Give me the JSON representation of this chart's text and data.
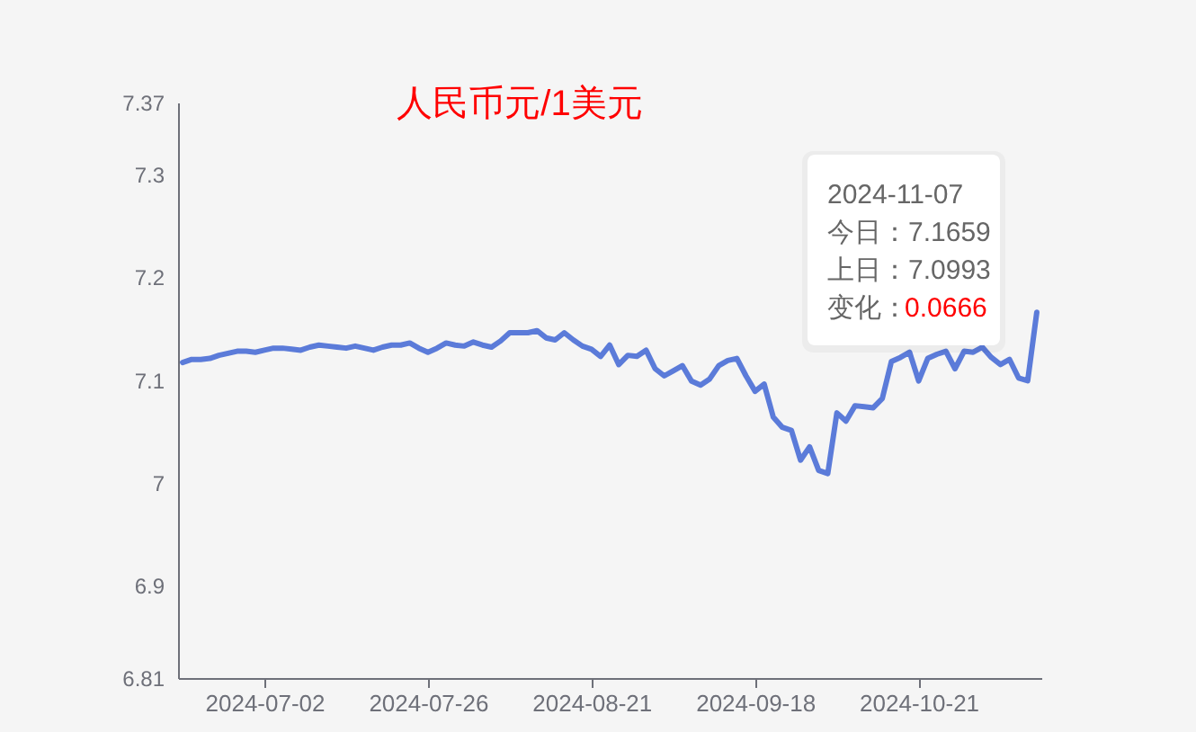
{
  "chart_data": {
    "type": "line",
    "title": "人民币元/1美元",
    "categories": [
      null,
      null,
      null,
      null,
      null,
      null,
      null,
      null,
      null,
      "2024-07-02",
      null,
      null,
      null,
      null,
      null,
      null,
      null,
      null,
      null,
      null,
      null,
      null,
      null,
      null,
      null,
      null,
      null,
      "2024-07-26",
      null,
      null,
      null,
      null,
      null,
      null,
      null,
      null,
      null,
      null,
      null,
      null,
      null,
      null,
      null,
      null,
      null,
      "2024-08-21",
      null,
      null,
      null,
      null,
      null,
      null,
      null,
      null,
      null,
      null,
      null,
      null,
      null,
      null,
      null,
      null,
      null,
      "2024-09-18",
      null,
      null,
      null,
      null,
      null,
      null,
      null,
      null,
      null,
      null,
      null,
      null,
      null,
      null,
      null,
      null,
      null,
      "2024-10-21",
      null,
      null,
      null,
      null,
      null,
      null,
      null,
      null,
      null,
      null,
      null,
      null,
      null
    ],
    "series": [
      {
        "color": "#5b7bd9",
        "values": [
          7.117,
          7.12,
          7.12,
          7.121,
          7.124,
          7.126,
          7.128,
          7.128,
          7.127,
          7.129,
          7.131,
          7.131,
          7.13,
          7.129,
          7.132,
          7.134,
          7.133,
          7.132,
          7.131,
          7.133,
          7.131,
          7.129,
          7.132,
          7.134,
          7.134,
          7.136,
          7.131,
          7.127,
          7.131,
          7.136,
          7.134,
          7.133,
          7.137,
          7.134,
          7.132,
          7.138,
          7.146,
          7.146,
          7.146,
          7.148,
          7.141,
          7.139,
          7.146,
          7.139,
          7.133,
          7.13,
          7.123,
          7.134,
          7.115,
          7.124,
          7.123,
          7.129,
          7.111,
          7.104,
          7.109,
          7.114,
          7.099,
          7.095,
          7.101,
          7.114,
          7.119,
          7.121,
          7.104,
          7.089,
          7.096,
          7.064,
          7.054,
          7.051,
          7.022,
          7.035,
          7.012,
          7.009,
          7.068,
          7.06,
          7.075,
          7.074,
          7.073,
          7.082,
          7.118,
          7.122,
          7.127,
          7.099,
          7.121,
          7.125,
          7.128,
          7.111,
          7.128,
          7.127,
          7.132,
          7.122,
          7.115,
          7.12,
          7.102,
          7.0993,
          7.1659
        ]
      }
    ],
    "ylim": [
      6.81,
      7.37
    ],
    "yticks": [
      6.81,
      6.9,
      7,
      7.1,
      7.2,
      7.3,
      7.37
    ],
    "annotations": [
      "2024-11-07",
      "今日：7.1659",
      "上日：7.0993",
      "变化：",
      "0.0666"
    ]
  }
}
